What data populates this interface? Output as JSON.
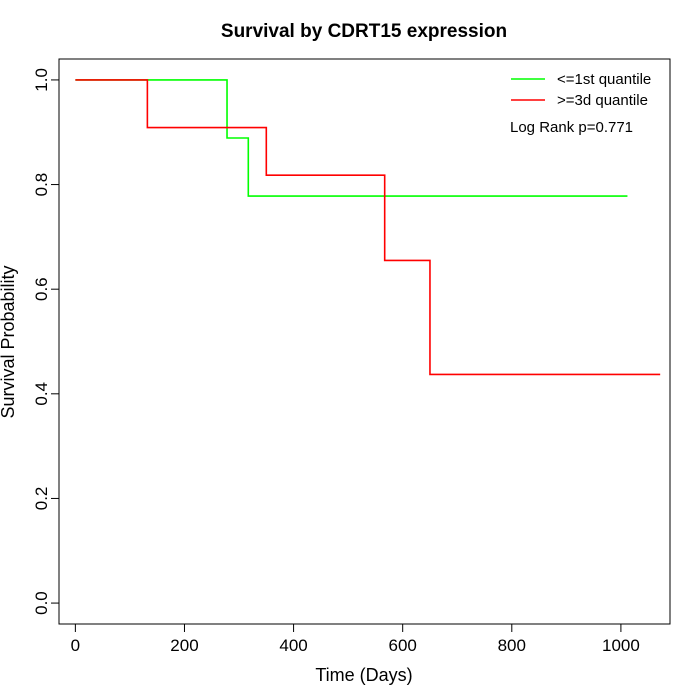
{
  "chart_data": {
    "type": "line",
    "title": "Survival by CDRT15 expression",
    "xlabel": "Time (Days)",
    "ylabel": "Survival Probability",
    "xlim": [
      -30,
      1090
    ],
    "ylim": [
      -0.04,
      1.04
    ],
    "x_ticks": [
      0,
      200,
      400,
      600,
      800,
      1000
    ],
    "y_ticks": [
      0.0,
      0.2,
      0.4,
      0.6,
      0.8,
      1.0
    ],
    "x_tick_labels": [
      "0",
      "200",
      "400",
      "600",
      "800",
      "1000"
    ],
    "y_tick_labels": [
      "0.0",
      "0.2",
      "0.4",
      "0.6",
      "0.8",
      "1.0"
    ],
    "grid": false,
    "legend_position": "top-right",
    "annotation": "Log Rank p=0.771",
    "series": [
      {
        "name": "<=1st quantile",
        "color": "#00ff00",
        "step": true,
        "x": [
          0,
          278,
          317,
          1012
        ],
        "y": [
          1.0,
          0.889,
          0.778,
          0.778
        ]
      },
      {
        "name": ">=3d quantile",
        "color": "#ff0000",
        "step": true,
        "x": [
          0,
          132,
          350,
          567,
          650,
          1072
        ],
        "y": [
          1.0,
          0.909,
          0.818,
          0.655,
          0.437,
          0.437
        ]
      }
    ]
  }
}
